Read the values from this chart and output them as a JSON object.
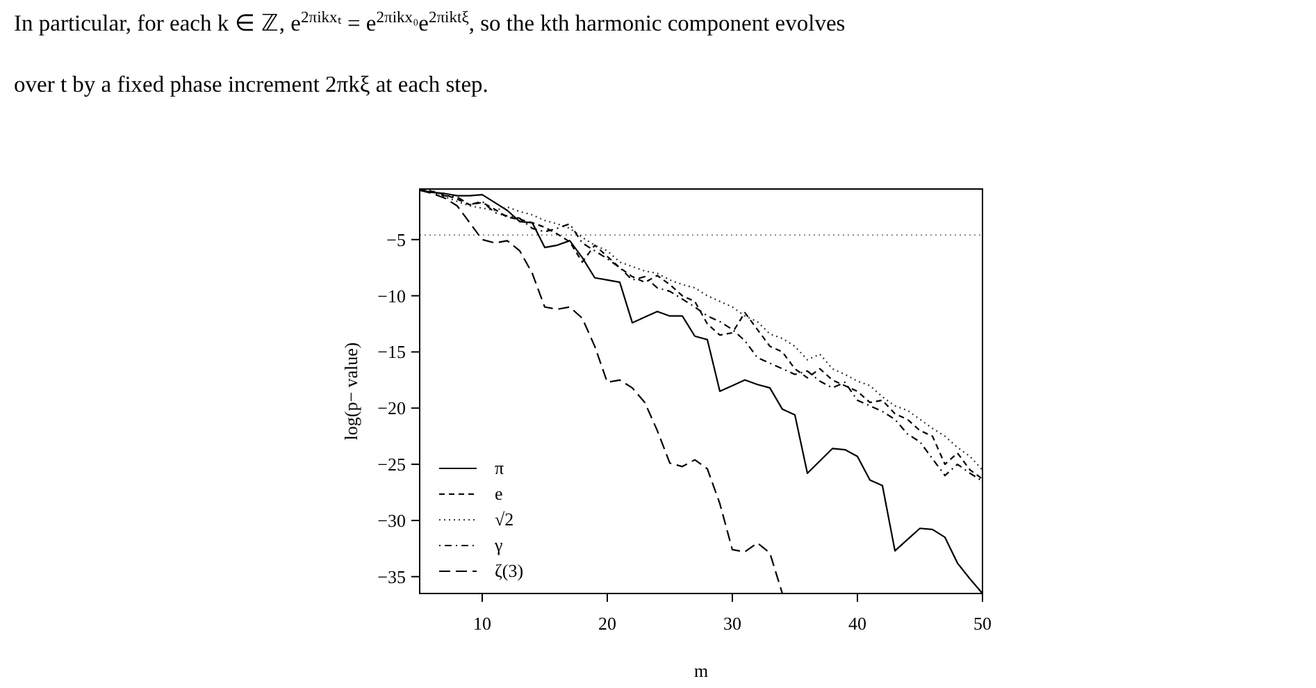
{
  "chart_data": {
    "type": "line",
    "xlabel": "m",
    "ylabel": "log(p− value)",
    "annotations": [
      "In particular, for each k ∈ ℤ, e$^{2πikxₜ}$ = e$^{2πikx₀}$e$^{2πiktξ}$, so the kth harmonic component evolves",
      "over t by a fixed phase increment 2πkξ at each step."
    ],
    "x": [
      5,
      6,
      7,
      8,
      9,
      10,
      11,
      12,
      13,
      14,
      15,
      16,
      17,
      18,
      19,
      20,
      21,
      22,
      23,
      24,
      25,
      26,
      27,
      28,
      29,
      30,
      31,
      32,
      33,
      34,
      35,
      36,
      37,
      38,
      39,
      40,
      41,
      42,
      43,
      44,
      45,
      46,
      47,
      48,
      49,
      50
    ],
    "series": [
      {
        "name": "π",
        "color": "#000000",
        "line_style": "solid",
        "values": [
          -0.6,
          -0.8,
          -0.9,
          -1.1,
          -1.1,
          -1.0,
          -1.7,
          -2.4,
          -3.4,
          -3.5,
          -5.7,
          -5.5,
          -5.1,
          -6.6,
          -8.4,
          -8.6,
          -8.8,
          -12.4,
          -11.9,
          -11.4,
          -11.8,
          -11.8,
          -13.6,
          -13.9,
          -18.5,
          -18.0,
          -17.5,
          -17.9,
          -18.2,
          -20.1,
          -20.6,
          -25.8,
          -24.7,
          -23.6,
          -23.7,
          -24.3,
          -26.4,
          -26.9,
          -32.7,
          -31.7,
          -30.7,
          -30.8,
          -31.5,
          -33.8,
          -35.2,
          -36.5
        ]
      },
      {
        "name": "e",
        "color": "#000000",
        "line_style": "dashed",
        "values": [
          -0.5,
          -0.7,
          -1.0,
          -1.4,
          -1.9,
          -1.7,
          -2.3,
          -3.0,
          -3.2,
          -3.5,
          -3.9,
          -4.5,
          -5.2,
          -7.0,
          -5.5,
          -6.5,
          -7.5,
          -8.3,
          -8.8,
          -8.2,
          -9.0,
          -10.0,
          -10.5,
          -12.5,
          -13.5,
          -13.3,
          -11.5,
          -13.0,
          -14.5,
          -15.0,
          -16.5,
          -17.3,
          -16.5,
          -17.5,
          -18.0,
          -18.5,
          -19.5,
          -19.3,
          -20.5,
          -21.0,
          -22.0,
          -22.5,
          -25.0,
          -24.0,
          -25.5,
          -26.3
        ]
      },
      {
        "name": "√2",
        "color": "#333333",
        "line_style": "dotted",
        "values": [
          -0.5,
          -0.6,
          -1.2,
          -1.6,
          -2.0,
          -2.2,
          -2.4,
          -2.1,
          -2.5,
          -2.8,
          -3.3,
          -3.6,
          -4.0,
          -4.8,
          -5.5,
          -6.0,
          -7.0,
          -7.4,
          -7.8,
          -8.0,
          -8.6,
          -9.0,
          -9.3,
          -10.0,
          -10.5,
          -11.0,
          -11.8,
          -12.3,
          -13.4,
          -13.8,
          -14.5,
          -15.7,
          -15.2,
          -16.5,
          -17.0,
          -17.6,
          -18.0,
          -19.0,
          -19.8,
          -20.2,
          -21.0,
          -21.8,
          -22.5,
          -23.5,
          -24.3,
          -25.5
        ]
      },
      {
        "name": "γ",
        "color": "#000000",
        "line_style": "dashdot",
        "values": [
          -0.6,
          -0.8,
          -1.1,
          -1.2,
          -1.9,
          -1.6,
          -2.6,
          -2.9,
          -3.1,
          -4.0,
          -4.3,
          -4.0,
          -3.6,
          -5.3,
          -6.0,
          -6.7,
          -7.5,
          -8.6,
          -8.3,
          -9.3,
          -9.6,
          -10.3,
          -11.0,
          -11.8,
          -12.3,
          -13.0,
          -14.0,
          -15.5,
          -16.0,
          -16.5,
          -17.0,
          -16.7,
          -17.6,
          -18.2,
          -17.7,
          -19.3,
          -19.8,
          -20.3,
          -21.0,
          -22.3,
          -23.0,
          -24.5,
          -26.0,
          -25.0,
          -25.8,
          -26.5
        ]
      },
      {
        "name": "ζ(3)",
        "color": "#000000",
        "line_style": "longdash",
        "x": [
          5,
          6,
          7,
          8,
          9,
          10,
          11,
          12,
          13,
          14,
          15,
          16,
          17,
          18,
          19,
          20,
          21,
          22,
          23,
          24,
          25,
          26,
          27,
          28,
          29,
          30,
          31,
          32,
          33,
          34
        ],
        "values": [
          -0.6,
          -0.9,
          -1.3,
          -2.0,
          -3.5,
          -5.0,
          -5.3,
          -5.1,
          -6.0,
          -8.0,
          -11.0,
          -11.2,
          -11.0,
          -12.0,
          -14.5,
          -17.7,
          -17.5,
          -18.2,
          -19.5,
          -22.0,
          -24.9,
          -25.2,
          -24.6,
          -25.4,
          -28.5,
          -32.6,
          -32.8,
          -32.0,
          -32.9,
          -36.5
        ]
      }
    ],
    "xlim": [
      5,
      50
    ],
    "ylim": [
      -36.5,
      -0.5
    ],
    "xticks": [
      10,
      20,
      30,
      40,
      50
    ],
    "yticks": [
      -5,
      -10,
      -15,
      -20,
      -25,
      -30,
      -35
    ],
    "ref_lines": [
      {
        "axis": "y",
        "value": -4.6,
        "color": "#888888",
        "line_style": "dotted"
      }
    ],
    "legend": "bottom left",
    "grid": false
  }
}
